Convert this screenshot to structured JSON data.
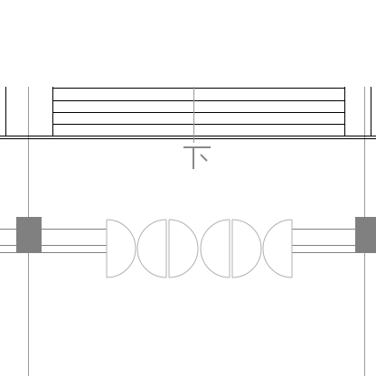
{
  "drawing": {
    "background_color": "#ffffff",
    "line_color": "#000000",
    "guide_color": "#9a9a9a",
    "door_color": "#b0b0b0",
    "column_color": "#808080",
    "annotation_color": "#888888"
  },
  "stair": {
    "direction_label": "下"
  }
}
